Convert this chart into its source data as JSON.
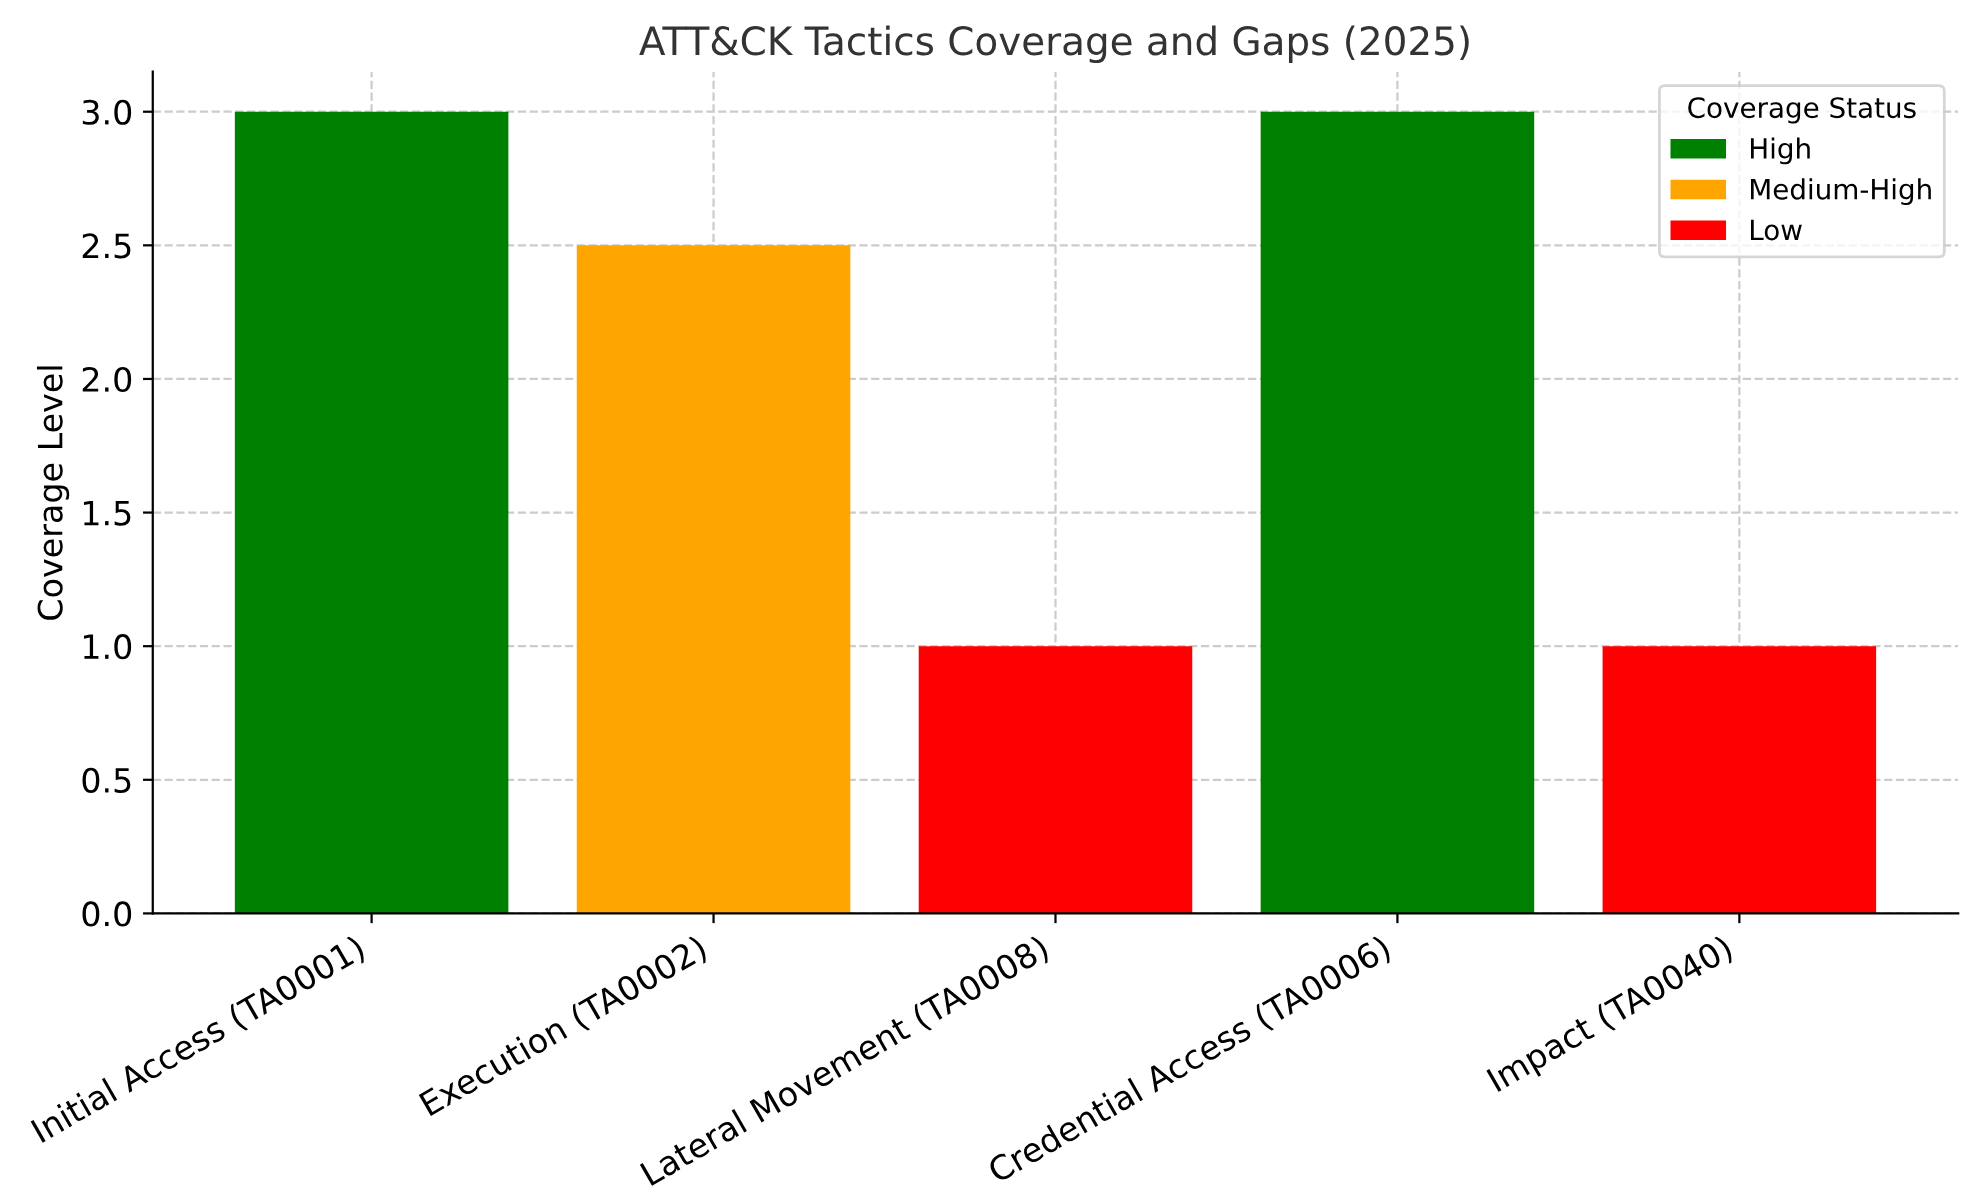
{
  "chart_data": {
    "type": "bar",
    "title": "ATT&CK Tactics Coverage and Gaps (2025)",
    "ylabel": "Coverage Level",
    "categories": [
      "Initial Access (TA0001)",
      "Execution (TA0002)",
      "Lateral Movement (TA0008)",
      "Credential Access (TA0006)",
      "Impact (TA0040)"
    ],
    "series": [
      {
        "name": "High",
        "color": "#008000",
        "values": [
          3,
          null,
          null,
          3,
          null
        ]
      },
      {
        "name": "Medium-High",
        "color": "#ffa500",
        "values": [
          null,
          2.5,
          null,
          null,
          null
        ]
      },
      {
        "name": "Low",
        "color": "#ff0000",
        "values": [
          null,
          null,
          1,
          null,
          1
        ]
      }
    ],
    "legend_title": "Coverage Status",
    "legend": "top right",
    "ylim": [
      0,
      3.15
    ],
    "yticks": [
      {
        "value": 0,
        "label": "0.0"
      },
      {
        "value": 0.5,
        "label": "0.5"
      },
      {
        "value": 1,
        "label": "1.0"
      },
      {
        "value": 1.5,
        "label": "1.5"
      },
      {
        "value": 2,
        "label": "2.0"
      },
      {
        "value": 2.5,
        "label": "2.5"
      },
      {
        "value": 3,
        "label": "3.0"
      }
    ],
    "grid": true
  }
}
